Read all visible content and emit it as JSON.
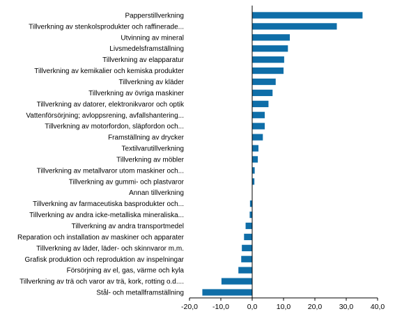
{
  "chart_data": {
    "type": "bar",
    "orientation": "horizontal",
    "title": "",
    "xlabel": "",
    "ylabel": "",
    "categories": [
      "Papperstillverkning",
      "Tillverkning av stenkolsprodukter och raffinerade...",
      "Utvinning av mineral",
      "Livsmedelsframställning",
      "Tillverkning av elapparatur",
      "Tillverkning av kemikalier och kemiska produkter",
      "Tillverkning av kläder",
      "Tillverkning av övriga maskiner",
      "Tillverkning av datorer, elektronikvaror och optik",
      "Vattenförsörjning; avloppsrening, avfallshantering...",
      "Tillverkning av motorfordon, släpfordon och...",
      "Framställning av drycker",
      "Textilvarutillverkning",
      "Tillverkning av möbler",
      "Tillverkning av metallvaror utom maskiner och...",
      "Tillverkning av gummi- och plastvaror",
      "Annan tillverkning",
      "Tillverkning av farmaceutiska basprodukter och...",
      "Tillverkning av andra icke-metalliska mineraliska...",
      "Tillverkning av andra transportmedel",
      "Reparation och installation av maskiner och apparater",
      "Tillverkning av läder, läder- och skinnvaror m.m.",
      "Grafisk produktion och reproduktion av inspelningar",
      "Försörjning av el, gas, värme och kyla",
      "Tillverkning av trä och varor av trä, kork, rotting o.d....",
      "Stål- och metallframställning"
    ],
    "values": [
      35.2,
      27.0,
      12.0,
      11.4,
      10.2,
      10.0,
      7.5,
      6.5,
      5.2,
      4.0,
      4.0,
      3.4,
      2.0,
      1.8,
      0.8,
      0.7,
      0.0,
      -0.7,
      -0.8,
      -2.1,
      -2.6,
      -3.3,
      -3.5,
      -4.4,
      -9.8,
      -15.9
    ],
    "xlim": [
      -20,
      40
    ],
    "xticks": [
      -20,
      -10,
      0,
      10,
      20,
      30,
      40
    ],
    "xtick_labels": [
      "-20,0",
      "-10,0",
      "0,0",
      "10,0",
      "20,0",
      "30,0",
      "40,0"
    ],
    "grid": false,
    "bar_color": "#0f6ea8",
    "axis_color": "#000000"
  }
}
